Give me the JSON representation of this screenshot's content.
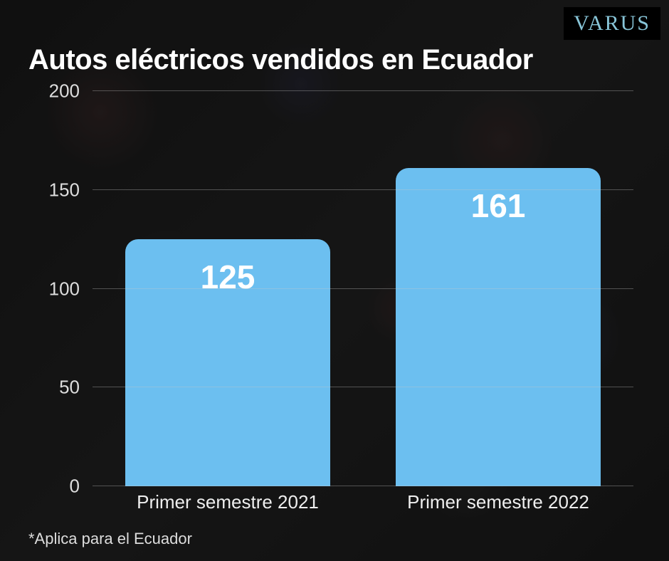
{
  "brand": "VARUS",
  "title": "Autos eléctricos vendidos en Ecuador",
  "footnote": "*Aplica para el Ecuador",
  "chart": {
    "type": "bar",
    "ylim": [
      0,
      200
    ],
    "ytick_step": 50,
    "yticks": [
      0,
      50,
      100,
      150,
      200
    ],
    "grid_color": "rgba(200,200,200,0.35)",
    "axis_label_color": "#dddddd",
    "axis_label_fontsize": 26,
    "bar_color": "#6cbff0",
    "bar_width_pct": 76,
    "bar_border_radius": 18,
    "value_label_color": "#ffffff",
    "value_label_fontsize": 46,
    "categories": [
      {
        "label": "Primer semestre 2021",
        "value": 125
      },
      {
        "label": "Primer semestre 2022",
        "value": 161
      }
    ]
  },
  "colors": {
    "background": "#1a1a1a",
    "brand_text": "#88c5d8",
    "title_text": "#ffffff",
    "footnote_text": "#dddddd"
  },
  "typography": {
    "title_fontsize": 40,
    "title_fontweight": 800,
    "brand_fontsize": 30,
    "xlabel_fontsize": 26,
    "footnote_fontsize": 22
  }
}
